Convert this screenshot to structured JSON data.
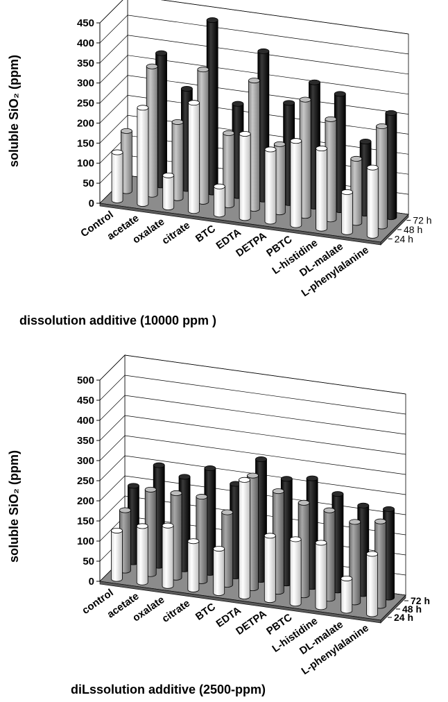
{
  "chart_data": [
    {
      "type": "bar",
      "subtype": "3d-cylinder-grouped",
      "ylabel": "soluble SiO₂ (ppm)",
      "xlabel": "dissolution additive (10000 ppm )",
      "ylim": [
        0,
        450
      ],
      "ytick_step": 50,
      "categories": [
        "Control",
        "acetate",
        "oxalate",
        "citrate",
        "BTC",
        "EDTA",
        "DETPA",
        "PBTC",
        "L-histidine",
        "DL-malate",
        "L-phenylalanine"
      ],
      "series": [
        {
          "name": "24 h",
          "color": "#f2f2f2",
          "values": [
            120,
            240,
            80,
            270,
            70,
            210,
            180,
            210,
            200,
            100,
            170
          ]
        },
        {
          "name": "48 h",
          "color": "#a6a6a6",
          "values": [
            150,
            320,
            190,
            330,
            180,
            320,
            170,
            290,
            250,
            160,
            250
          ]
        },
        {
          "name": "72 h",
          "color": "#1a1a1a",
          "values": [
            0,
            330,
            250,
            430,
            230,
            370,
            250,
            310,
            290,
            180,
            260
          ]
        }
      ],
      "grid": true
    },
    {
      "type": "bar",
      "subtype": "3d-cylinder-grouped",
      "ylabel": "soluble SiO₂ (ppm)",
      "xlabel": "diLssolution additive (2500-ppm)",
      "ylim": [
        0,
        500
      ],
      "ytick_step": 50,
      "categories": [
        "control",
        "acetate",
        "oxalate",
        "citrate",
        "BTC",
        "EDTA",
        "DETPA",
        "PBTC",
        "L-histidine",
        "DL-malate",
        "L-phenylalanine"
      ],
      "series": [
        {
          "name": "24 h",
          "color": "#f2f2f2",
          "values": [
            120,
            140,
            150,
            120,
            110,
            290,
            160,
            160,
            160,
            80,
            150
          ]
        },
        {
          "name": "48 h",
          "color": "#8c8c8c",
          "values": [
            150,
            210,
            210,
            210,
            180,
            280,
            250,
            230,
            220,
            200,
            210
          ]
        },
        {
          "name": "72 h",
          "color": "#1a1a1a",
          "values": [
            190,
            250,
            230,
            260,
            230,
            300,
            260,
            270,
            240,
            220,
            220
          ]
        }
      ],
      "grid": true
    }
  ]
}
